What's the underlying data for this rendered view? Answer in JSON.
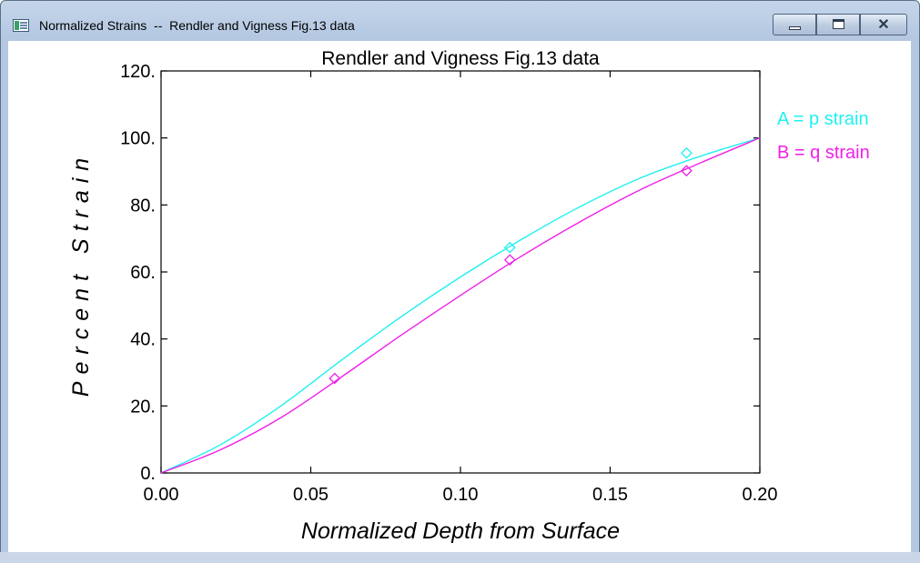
{
  "window": {
    "title": "Normalized Strains  --  Rendler and Vigness Fig.13 data",
    "icon": "app-window-icon",
    "controls": {
      "minimize": "minimize-icon",
      "maximize": "maximize-icon",
      "close": "close-icon",
      "close_glyph": "✕"
    }
  },
  "chart_data": {
    "type": "line",
    "title": "Rendler and Vigness Fig.13 data",
    "xlabel": "Normalized  Depth  from  Surface",
    "ylabel": "Percent  Strain",
    "xlim": [
      0,
      0.2
    ],
    "ylim": [
      0,
      120
    ],
    "x_ticks": [
      "0.00",
      "0.05",
      "0.10",
      "0.15",
      "0.20"
    ],
    "y_ticks": [
      "0.",
      "20.",
      "40.",
      "60.",
      "80.",
      "100.",
      "120."
    ],
    "grid": false,
    "legend_position": "right",
    "series": [
      {
        "name": "A = p strain",
        "color": "#20f0f0",
        "curve_x": [
          0,
          0.02,
          0.04,
          0.06,
          0.08,
          0.1,
          0.12,
          0.14,
          0.16,
          0.18,
          0.2
        ],
        "curve_y": [
          0,
          8.5,
          20,
          33.5,
          46.5,
          58.5,
          69.5,
          79.5,
          88,
          94.5,
          100
        ],
        "points": [
          [
            0.1165,
            67.3
          ],
          [
            0.1755,
            95.5
          ]
        ]
      },
      {
        "name": "B = q strain",
        "color": "#f020e8",
        "curve_x": [
          0,
          0.02,
          0.04,
          0.06,
          0.08,
          0.1,
          0.12,
          0.14,
          0.16,
          0.18,
          0.2
        ],
        "curve_y": [
          0,
          7,
          16.5,
          28.5,
          41,
          53,
          64.5,
          75,
          84.5,
          92.5,
          100
        ],
        "points": [
          [
            0.058,
            28.2
          ],
          [
            0.1165,
            63.6
          ],
          [
            0.1755,
            90.2
          ]
        ]
      }
    ]
  }
}
